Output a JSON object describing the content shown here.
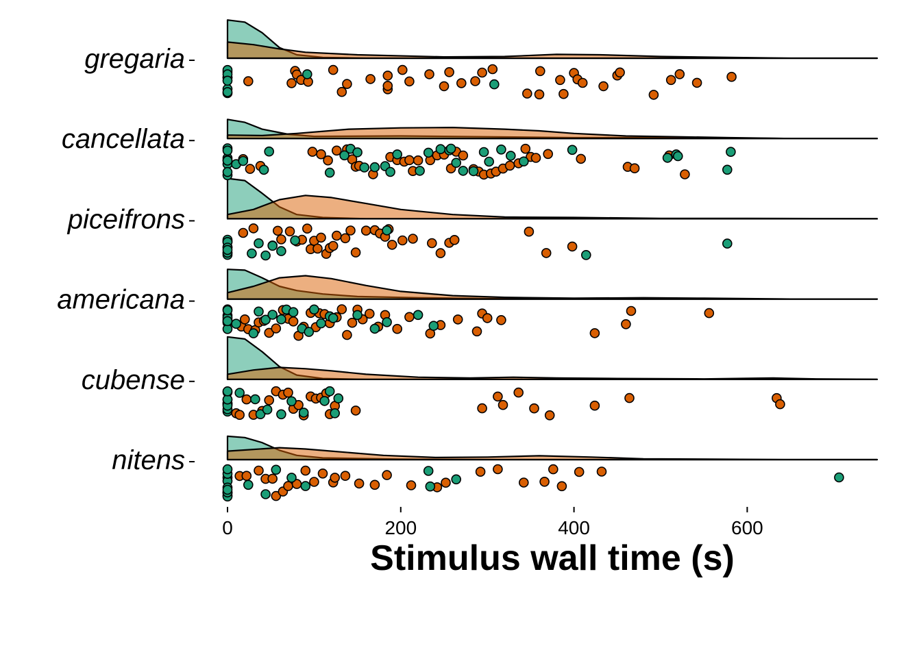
{
  "chart_data": {
    "type": "raincloud",
    "title": "",
    "xlabel": "Stimulus wall time (s)",
    "ylabel": "",
    "xlim": [
      0,
      750
    ],
    "x_ticks": [
      0,
      200,
      400,
      600
    ],
    "x_tick_labels": [
      "0",
      "200",
      "400",
      "600"
    ],
    "categories": [
      "gregaria",
      "cancellata",
      "piceifrons",
      "americana",
      "cubense",
      "nitens"
    ],
    "groups": [
      {
        "name": "group_a",
        "color": "#1b9e77",
        "fill_alpha": 0.5
      },
      {
        "name": "group_b",
        "color": "#d95f02",
        "fill_alpha": 0.5
      }
    ],
    "series": [
      {
        "category": "gregaria",
        "density": {
          "group_a": [
            [
              0,
              0.9
            ],
            [
              20,
              0.85
            ],
            [
              40,
              0.6
            ],
            [
              60,
              0.25
            ],
            [
              80,
              0.08
            ],
            [
              110,
              0.02
            ],
            [
              160,
              0
            ],
            [
              750,
              0
            ]
          ],
          "group_b": [
            [
              0,
              0.38
            ],
            [
              30,
              0.32
            ],
            [
              60,
              0.22
            ],
            [
              90,
              0.14
            ],
            [
              150,
              0.08
            ],
            [
              250,
              0.03
            ],
            [
              320,
              0.04
            ],
            [
              380,
              0.09
            ],
            [
              430,
              0.08
            ],
            [
              500,
              0.04
            ],
            [
              580,
              0.02
            ],
            [
              650,
              0
            ],
            [
              750,
              0
            ]
          ]
        },
        "points": {
          "group_a": [
            0,
            0,
            0,
            0,
            0,
            0,
            0,
            0,
            0,
            92,
            308
          ],
          "group_b": [
            24,
            74,
            78,
            80,
            85,
            93,
            122,
            132,
            138,
            165,
            185,
            185,
            185,
            202,
            210,
            233,
            250,
            256,
            270,
            286,
            294,
            306,
            346,
            360,
            361,
            384,
            388,
            400,
            404,
            410,
            434,
            450,
            453,
            492,
            512,
            522,
            542,
            582
          ]
        }
      },
      {
        "category": "cancellata",
        "density": {
          "group_a": [
            [
              0,
              0.45
            ],
            [
              20,
              0.38
            ],
            [
              40,
              0.22
            ],
            [
              70,
              0.1
            ],
            [
              100,
              0.05
            ],
            [
              200,
              0.06
            ],
            [
              300,
              0.04
            ],
            [
              400,
              0.02
            ],
            [
              500,
              0.02
            ],
            [
              580,
              0.01
            ],
            [
              650,
              0
            ],
            [
              750,
              0
            ]
          ],
          "group_b": [
            [
              0,
              0.08
            ],
            [
              40,
              0.07
            ],
            [
              80,
              0.12
            ],
            [
              140,
              0.22
            ],
            [
              200,
              0.25
            ],
            [
              260,
              0.26
            ],
            [
              320,
              0.22
            ],
            [
              360,
              0.18
            ],
            [
              400,
              0.12
            ],
            [
              460,
              0.06
            ],
            [
              520,
              0.04
            ],
            [
              580,
              0.02
            ],
            [
              650,
              0
            ],
            [
              750,
              0
            ]
          ]
        },
        "points": {
          "group_a": [
            0,
            0,
            0,
            0,
            0,
            0,
            0,
            0,
            10,
            18,
            48,
            42,
            118,
            135,
            142,
            150,
            158,
            170,
            182,
            188,
            196,
            222,
            232,
            246,
            256,
            258,
            264,
            272,
            284,
            296,
            302,
            316,
            327,
            342,
            398,
            508,
            518,
            520,
            577,
            581
          ],
          "group_b": [
            18,
            26,
            38,
            98,
            108,
            116,
            126,
            138,
            144,
            148,
            152,
            168,
            188,
            196,
            204,
            210,
            214,
            220,
            234,
            242,
            250,
            258,
            264,
            272,
            284,
            290,
            296,
            304,
            310,
            318,
            326,
            336,
            344,
            350,
            356,
            370,
            408,
            462,
            470,
            510,
            528
          ]
        }
      },
      {
        "category": "piceifrons",
        "density": {
          "group_a": [
            [
              0,
              0.95
            ],
            [
              20,
              0.9
            ],
            [
              40,
              0.6
            ],
            [
              60,
              0.28
            ],
            [
              80,
              0.1
            ],
            [
              110,
              0.03
            ],
            [
              160,
              0
            ],
            [
              750,
              0
            ]
          ],
          "group_b": [
            [
              0,
              0.1
            ],
            [
              30,
              0.22
            ],
            [
              60,
              0.45
            ],
            [
              90,
              0.55
            ],
            [
              120,
              0.5
            ],
            [
              160,
              0.36
            ],
            [
              200,
              0.22
            ],
            [
              260,
              0.1
            ],
            [
              320,
              0.04
            ],
            [
              400,
              0.03
            ],
            [
              500,
              0.01
            ],
            [
              600,
              0.01
            ],
            [
              750,
              0
            ]
          ]
        },
        "points": {
          "group_a": [
            0,
            0,
            0,
            0,
            0,
            0,
            0,
            0,
            0,
            0,
            28,
            36,
            44,
            52,
            62,
            78,
            184,
            414,
            577
          ],
          "group_b": [
            18,
            30,
            52,
            58,
            62,
            72,
            80,
            86,
            92,
            96,
            100,
            104,
            108,
            114,
            118,
            122,
            126,
            136,
            142,
            148,
            160,
            170,
            176,
            182,
            186,
            190,
            202,
            214,
            236,
            246,
            256,
            262,
            348,
            368,
            398
          ]
        }
      },
      {
        "category": "americana",
        "density": {
          "group_a": [
            [
              0,
              0.7
            ],
            [
              20,
              0.68
            ],
            [
              40,
              0.5
            ],
            [
              60,
              0.3
            ],
            [
              80,
              0.2
            ],
            [
              110,
              0.12
            ],
            [
              150,
              0.06
            ],
            [
              220,
              0.03
            ],
            [
              300,
              0.01
            ],
            [
              400,
              0
            ],
            [
              750,
              0
            ]
          ],
          "group_b": [
            [
              0,
              0.15
            ],
            [
              30,
              0.3
            ],
            [
              60,
              0.5
            ],
            [
              90,
              0.55
            ],
            [
              120,
              0.48
            ],
            [
              160,
              0.32
            ],
            [
              200,
              0.18
            ],
            [
              260,
              0.08
            ],
            [
              320,
              0.04
            ],
            [
              400,
              0.02
            ],
            [
              480,
              0.03
            ],
            [
              550,
              0.02
            ],
            [
              650,
              0
            ],
            [
              750,
              0
            ]
          ]
        },
        "points": {
          "group_a": [
            0,
            0,
            0,
            0,
            0,
            0,
            0,
            0,
            0,
            10,
            30,
            36,
            44,
            52,
            62,
            68,
            76,
            86,
            94,
            100,
            108,
            118,
            122,
            150,
            170,
            184,
            220,
            238
          ],
          "group_b": [
            16,
            20,
            24,
            32,
            36,
            42,
            48,
            56,
            64,
            70,
            76,
            82,
            88,
            96,
            102,
            106,
            112,
            118,
            126,
            132,
            138,
            144,
            150,
            156,
            164,
            174,
            182,
            196,
            210,
            234,
            246,
            266,
            288,
            294,
            300,
            316,
            424,
            460,
            466,
            556
          ]
        }
      },
      {
        "category": "cubense",
        "density": {
          "group_a": [
            [
              0,
              1.0
            ],
            [
              20,
              0.95
            ],
            [
              40,
              0.65
            ],
            [
              60,
              0.3
            ],
            [
              80,
              0.1
            ],
            [
              110,
              0.02
            ],
            [
              160,
              0
            ],
            [
              750,
              0
            ]
          ],
          "group_b": [
            [
              0,
              0.12
            ],
            [
              30,
              0.22
            ],
            [
              60,
              0.28
            ],
            [
              90,
              0.25
            ],
            [
              120,
              0.2
            ],
            [
              160,
              0.12
            ],
            [
              220,
              0.05
            ],
            [
              280,
              0.03
            ],
            [
              330,
              0.05
            ],
            [
              380,
              0.03
            ],
            [
              450,
              0.02
            ],
            [
              550,
              0.01
            ],
            [
              630,
              0.03
            ],
            [
              680,
              0.01
            ],
            [
              750,
              0
            ]
          ]
        },
        "points": {
          "group_a": [
            0,
            0,
            0,
            0,
            0,
            0,
            0,
            0,
            0,
            0,
            14,
            32,
            38,
            46,
            62,
            74,
            88,
            112,
            118,
            124,
            128
          ],
          "group_b": [
            10,
            14,
            22,
            30,
            40,
            48,
            56,
            64,
            70,
            76,
            82,
            88,
            96,
            102,
            108,
            114,
            118,
            124,
            148,
            294,
            312,
            318,
            336,
            354,
            372,
            424,
            464,
            634,
            638
          ]
        }
      },
      {
        "category": "nitens",
        "density": {
          "group_a": [
            [
              0,
              0.55
            ],
            [
              20,
              0.52
            ],
            [
              40,
              0.4
            ],
            [
              60,
              0.22
            ],
            [
              80,
              0.1
            ],
            [
              110,
              0.04
            ],
            [
              200,
              0.01
            ],
            [
              300,
              0
            ],
            [
              750,
              0
            ]
          ],
          "group_b": [
            [
              0,
              0.2
            ],
            [
              30,
              0.24
            ],
            [
              60,
              0.28
            ],
            [
              90,
              0.25
            ],
            [
              120,
              0.2
            ],
            [
              180,
              0.1
            ],
            [
              240,
              0.05
            ],
            [
              300,
              0.06
            ],
            [
              360,
              0.09
            ],
            [
              420,
              0.06
            ],
            [
              480,
              0.02
            ],
            [
              560,
              0.01
            ],
            [
              650,
              0
            ],
            [
              750,
              0
            ]
          ]
        },
        "points": {
          "group_a": [
            0,
            0,
            0,
            0,
            0,
            0,
            0,
            0,
            0,
            0,
            0,
            24,
            44,
            56,
            74,
            90,
            232,
            234,
            264,
            706
          ],
          "group_b": [
            14,
            22,
            36,
            44,
            52,
            56,
            64,
            70,
            80,
            90,
            100,
            110,
            122,
            124,
            136,
            152,
            170,
            184,
            212,
            242,
            252,
            292,
            312,
            342,
            366,
            376,
            386,
            406,
            432
          ]
        }
      }
    ]
  }
}
